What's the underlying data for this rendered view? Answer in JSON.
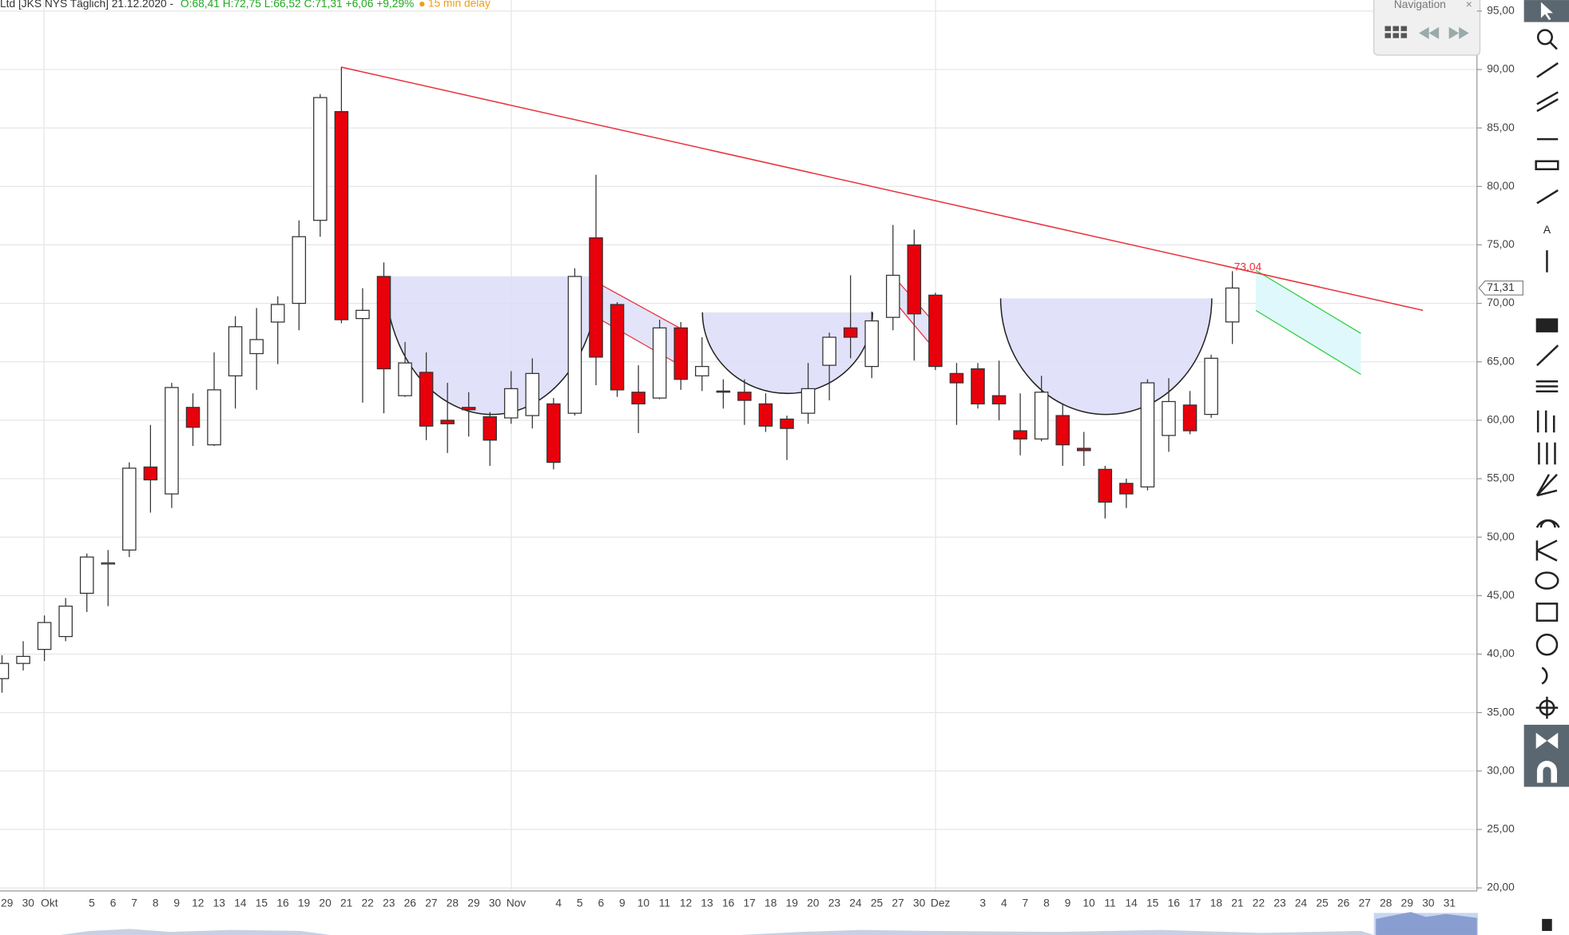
{
  "chart_data": {
    "type": "candlestick",
    "title": "Ltd [JKS NYS Täglich] 21.12.2020 -",
    "subtitle": "O:68,41 H:72,75 L:66,52 C:71,31 +6,06 +9,29%",
    "note": "15 min delay",
    "categories": [
      "29",
      "30",
      "Okt",
      null,
      "5",
      "6",
      "7",
      "8",
      "9",
      "12",
      "13",
      "14",
      "15",
      "16",
      "19",
      "20",
      "21",
      "22",
      "23",
      "26",
      "27",
      "28",
      "29",
      "30",
      "Nov",
      null,
      "4",
      "5",
      "6",
      "9",
      "10",
      "11",
      "12",
      "13",
      "16",
      "17",
      "18",
      "19",
      "20",
      "23",
      "24",
      "25",
      "27",
      "30",
      "Dez",
      null,
      "3",
      "4",
      "7",
      "8",
      "9",
      "10",
      "11",
      "14",
      "15",
      "16",
      "17",
      "18",
      "21",
      "22",
      "23",
      "24",
      "25",
      "26",
      "27",
      "28",
      "29",
      "30",
      "31"
    ],
    "open": [
      37.9,
      39.2,
      40.4,
      41.5,
      45.2,
      47.7,
      48.9,
      56.0,
      53.7,
      61.1,
      57.9,
      63.8,
      65.7,
      68.4,
      70.0,
      77.1,
      86.4,
      68.7,
      72.3,
      62.1,
      64.1,
      60.0,
      61.1,
      60.3,
      60.2,
      60.4,
      61.4,
      60.6,
      75.6,
      69.9,
      62.4,
      61.9,
      67.9,
      63.8,
      62.5,
      62.4,
      61.4,
      60.1,
      60.6,
      64.7,
      67.9,
      64.6,
      68.8,
      75.0,
      70.7,
      64.0,
      64.4,
      62.1,
      59.1,
      58.4,
      60.4,
      57.6,
      55.8,
      54.6,
      54.3,
      58.7,
      61.3,
      60.5,
      68.41,
      null,
      null,
      null,
      null,
      null,
      null,
      null,
      null,
      null,
      null
    ],
    "high": [
      39.9,
      41.1,
      43.3,
      44.8,
      48.6,
      48.9,
      56.4,
      59.6,
      63.2,
      62.3,
      65.8,
      68.9,
      69.6,
      70.6,
      77.1,
      87.9,
      90.2,
      71.3,
      73.5,
      66.7,
      65.8,
      63.2,
      62.4,
      60.7,
      64.2,
      65.3,
      61.9,
      73.0,
      81.0,
      70.1,
      64.7,
      68.6,
      68.4,
      67.1,
      63.5,
      63.5,
      62.3,
      60.4,
      64.9,
      67.5,
      72.4,
      69.3,
      76.7,
      76.3,
      70.9,
      64.9,
      64.9,
      65.1,
      62.3,
      63.8,
      61.4,
      59.0,
      56.1,
      55.0,
      63.5,
      63.6,
      62.5,
      65.6,
      72.75,
      null,
      null,
      null,
      null,
      null,
      null,
      null,
      null,
      null,
      null
    ],
    "low": [
      36.7,
      38.6,
      39.4,
      41.1,
      43.6,
      44.1,
      48.3,
      52.1,
      52.5,
      57.8,
      57.8,
      61.0,
      62.6,
      64.8,
      67.7,
      75.7,
      68.3,
      61.5,
      60.6,
      62.0,
      58.3,
      57.2,
      58.6,
      56.1,
      59.7,
      59.3,
      55.8,
      60.4,
      63.0,
      62.0,
      58.9,
      61.8,
      62.6,
      62.5,
      61.0,
      59.6,
      59.0,
      56.6,
      59.7,
      61.7,
      65.3,
      63.6,
      67.7,
      65.1,
      64.3,
      59.6,
      61.0,
      60.0,
      57.0,
      58.2,
      56.1,
      56.1,
      51.6,
      52.5,
      54.0,
      57.3,
      58.8,
      60.2,
      66.52,
      null,
      null,
      null,
      null,
      null,
      null,
      null,
      null,
      null,
      null
    ],
    "close": [
      39.2,
      39.8,
      42.7,
      44.1,
      48.3,
      47.8,
      55.9,
      54.9,
      62.8,
      59.4,
      62.6,
      68.0,
      66.9,
      69.9,
      75.7,
      87.6,
      68.6,
      69.4,
      64.4,
      64.9,
      59.5,
      59.7,
      60.9,
      58.3,
      62.7,
      64.0,
      56.4,
      72.3,
      65.4,
      62.6,
      61.4,
      67.9,
      63.5,
      64.6,
      62.4,
      61.7,
      59.5,
      59.3,
      62.7,
      67.1,
      67.1,
      68.5,
      72.4,
      69.1,
      64.6,
      63.2,
      61.4,
      61.4,
      58.4,
      62.4,
      57.9,
      57.4,
      53.0,
      53.7,
      63.2,
      61.6,
      59.1,
      65.3,
      71.31,
      null,
      null,
      null,
      null,
      null,
      null,
      null,
      null,
      null,
      null
    ],
    "up_color": "#ffffff",
    "down_color": "#e8000b",
    "ylim": [
      20,
      95
    ],
    "yticks": [
      {
        "value": 95,
        "label": "95,00"
      },
      {
        "value": 90,
        "label": "90,00"
      },
      {
        "value": 85,
        "label": "85,00"
      },
      {
        "value": 80,
        "label": "80,00"
      },
      {
        "value": 75,
        "label": "75,00"
      },
      {
        "value": 70,
        "label": "70,00"
      },
      {
        "value": 65,
        "label": "65,00"
      },
      {
        "value": 60,
        "label": "60,00"
      },
      {
        "value": 55,
        "label": "55,00"
      },
      {
        "value": 50,
        "label": "50,00"
      },
      {
        "value": 45,
        "label": "45,00"
      },
      {
        "value": 40,
        "label": "40,00"
      },
      {
        "value": 35,
        "label": "35,00"
      },
      {
        "value": 30,
        "label": "30,00"
      },
      {
        "value": 25,
        "label": "25,00"
      },
      {
        "value": 20,
        "label": "20,00"
      }
    ],
    "grid": true,
    "price_marker": {
      "value": 71.31,
      "label": "71,31"
    },
    "trendline_label": {
      "value": 73.04,
      "label": "73,04"
    }
  },
  "navigation": {
    "title": "Navigation"
  }
}
